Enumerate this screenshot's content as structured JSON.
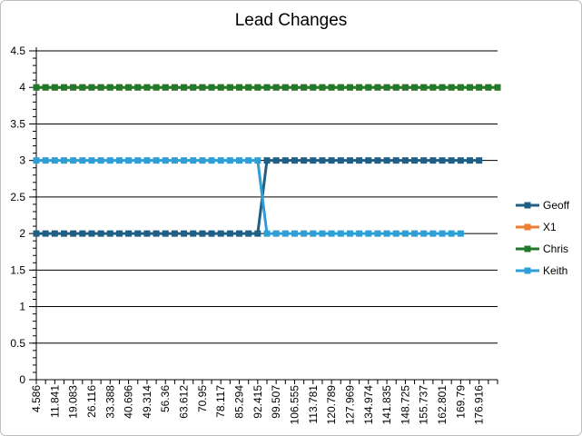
{
  "chart_data": {
    "type": "line",
    "title": "Lead Changes",
    "xlabel": "",
    "ylabel": "",
    "ylim": [
      0,
      4.5
    ],
    "y_ticks": [
      "0",
      "0.5",
      "1",
      "1.5",
      "2",
      "2.5",
      "3",
      "3.5",
      "4",
      "4.5"
    ],
    "x_tick_labels": [
      "4.586",
      "11.841",
      "19.083",
      "26.116",
      "33.388",
      "40.696",
      "49.314",
      "56.36",
      "63.612",
      "70.95",
      "78.117",
      "85.294",
      "92.415",
      "99.507",
      "106.555",
      "113.781",
      "120.789",
      "127.969",
      "134.974",
      "141.835",
      "148.725",
      "155.737",
      "162.801",
      "169.79",
      "176.916"
    ],
    "grid": true,
    "legend_position": "right",
    "series": [
      {
        "name": "Geoff",
        "color": "#1f5f86",
        "values": [
          2,
          2,
          2,
          2,
          2,
          2,
          2,
          2,
          2,
          2,
          2,
          2,
          2,
          2,
          2,
          2,
          2,
          2,
          2,
          2,
          2,
          2,
          2,
          2,
          2,
          3,
          3,
          3,
          3,
          3,
          3,
          3,
          3,
          3,
          3,
          3,
          3,
          3,
          3,
          3,
          3,
          3,
          3,
          3,
          3,
          3,
          3,
          3,
          3
        ]
      },
      {
        "name": "X1",
        "color": "#ed7d31",
        "values": [
          4,
          4,
          4,
          4,
          4,
          4,
          4,
          4,
          4,
          4,
          4,
          4,
          4,
          4,
          4,
          4,
          4,
          4,
          4,
          4,
          4,
          4,
          4,
          4,
          4,
          4,
          4,
          4,
          4,
          4,
          4,
          4,
          4,
          4,
          4,
          4,
          4,
          4,
          4,
          4,
          4,
          4,
          4,
          4,
          4,
          4,
          4,
          4,
          4,
          4,
          4
        ]
      },
      {
        "name": "Chris",
        "color": "#217a2b",
        "values": [
          4,
          4,
          4,
          4,
          4,
          4,
          4,
          4,
          4,
          4,
          4,
          4,
          4,
          4,
          4,
          4,
          4,
          4,
          4,
          4,
          4,
          4,
          4,
          4,
          4,
          4,
          4,
          4,
          4,
          4,
          4,
          4,
          4,
          4,
          4,
          4,
          4,
          4,
          4,
          4,
          4,
          4,
          4,
          4,
          4,
          4,
          4,
          4,
          4,
          4,
          4
        ]
      },
      {
        "name": "Keith",
        "color": "#2e9fd6",
        "values": [
          3,
          3,
          3,
          3,
          3,
          3,
          3,
          3,
          3,
          3,
          3,
          3,
          3,
          3,
          3,
          3,
          3,
          3,
          3,
          3,
          3,
          3,
          3,
          3,
          3,
          2,
          2,
          2,
          2,
          2,
          2,
          2,
          2,
          2,
          2,
          2,
          2,
          2,
          2,
          2,
          2,
          2,
          2,
          2,
          2,
          2,
          2
        ]
      }
    ]
  }
}
